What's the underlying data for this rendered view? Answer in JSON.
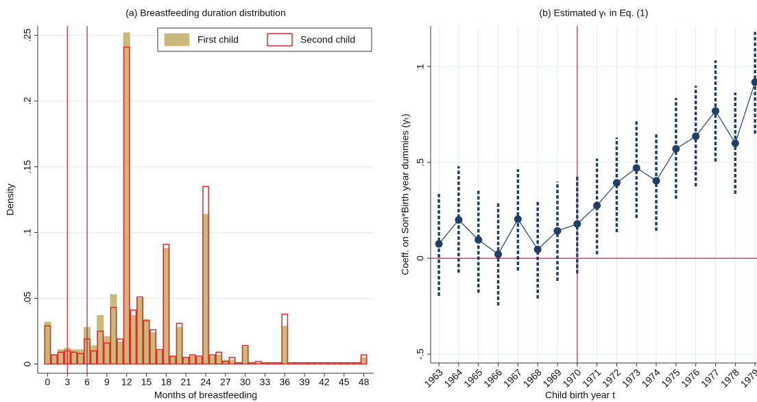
{
  "chart_data": [
    {
      "type": "bar",
      "title": "(a) Breastfeeding duration distribution",
      "xlabel": "Months of breastfeeding",
      "ylabel": "Density",
      "x": [
        0,
        1,
        2,
        3,
        4,
        5,
        6,
        7,
        8,
        9,
        10,
        11,
        12,
        13,
        14,
        15,
        16,
        17,
        18,
        19,
        20,
        21,
        22,
        23,
        24,
        25,
        26,
        27,
        28,
        29,
        30,
        31,
        32,
        33,
        34,
        35,
        36,
        37,
        38,
        39,
        40,
        41,
        42,
        43,
        44,
        45,
        46,
        47,
        48
      ],
      "series": [
        {
          "name": "First child",
          "color": "#c9b97a",
          "style": "filled",
          "values": [
            0.032,
            0.007,
            0.011,
            0.012,
            0.011,
            0.011,
            0.028,
            0.014,
            0.037,
            0.021,
            0.053,
            0.017,
            0.252,
            0.037,
            0.05,
            0.034,
            0.024,
            0.01,
            0.088,
            0.006,
            0.028,
            0.005,
            0.006,
            0.005,
            0.114,
            0.006,
            0.007,
            0.003,
            0.003,
            0.001,
            0.013,
            0.001,
            0.001,
            0.001,
            0.001,
            0.001,
            0.029,
            0.0005,
            0.001,
            0.001,
            0.001,
            0.001,
            0.0005,
            0.0005,
            0.0005,
            0.0005,
            0.0005,
            0.0005,
            0.005
          ]
        },
        {
          "name": "Second child",
          "color": "#e8232a",
          "style": "outline",
          "values": [
            0.029,
            0.007,
            0.009,
            0.01,
            0.009,
            0.008,
            0.019,
            0.01,
            0.025,
            0.016,
            0.043,
            0.019,
            0.241,
            0.041,
            0.051,
            0.033,
            0.026,
            0.011,
            0.091,
            0.006,
            0.031,
            0.005,
            0.007,
            0.006,
            0.135,
            0.007,
            0.009,
            0.002,
            0.005,
            0.001,
            0.014,
            0.001,
            0.002,
            0.001,
            0.001,
            0.001,
            0.038,
            0.001,
            0.001,
            0.001,
            0.001,
            0.001,
            0.001,
            0.001,
            0.001,
            0.001,
            0.001,
            0.001,
            0.007
          ]
        }
      ],
      "vlines": [
        {
          "value": 3,
          "color": "#e8232a"
        },
        {
          "value": 6,
          "color": "#9c2f66"
        }
      ],
      "xlim": [
        -1.5,
        49.5
      ],
      "ylim": [
        -0.007,
        0.257
      ],
      "xticks": [
        0,
        3,
        6,
        9,
        12,
        15,
        18,
        21,
        24,
        27,
        30,
        33,
        36,
        39,
        42,
        45,
        48
      ],
      "yticks": [
        {
          "value": 0,
          "label": "0"
        },
        {
          "value": 0.05,
          "label": ".05"
        },
        {
          "value": 0.1,
          "label": ".1"
        },
        {
          "value": 0.15,
          "label": ".15"
        },
        {
          "value": 0.2,
          "label": ".2"
        },
        {
          "value": 0.25,
          "label": ".25"
        }
      ],
      "grid": true,
      "legend": "top-right"
    },
    {
      "type": "errorbar",
      "title": "(b) Estimated γₜ in Eq. (1)",
      "xlabel": "Child birth year t",
      "ylabel": "Coeff. on Son*Birth year dummies (γₜ)",
      "x": [
        1963,
        1964,
        1965,
        1966,
        1967,
        1968,
        1969,
        1970,
        1971,
        1972,
        1973,
        1974,
        1975,
        1976,
        1977,
        1978,
        1979
      ],
      "values": [
        0.075,
        0.2,
        0.096,
        0.021,
        0.204,
        0.046,
        0.143,
        0.179,
        0.275,
        0.393,
        0.471,
        0.404,
        0.571,
        0.636,
        0.768,
        0.6,
        0.918
      ],
      "lower": [
        -0.196,
        -0.075,
        -0.18,
        -0.246,
        -0.064,
        -0.21,
        -0.118,
        -0.079,
        0.021,
        0.136,
        0.21,
        0.143,
        0.31,
        0.375,
        0.504,
        0.336,
        0.65
      ],
      "upper": [
        0.335,
        0.48,
        0.354,
        0.286,
        0.464,
        0.3,
        0.4,
        0.425,
        0.52,
        0.63,
        0.714,
        0.657,
        0.836,
        0.9,
        1.032,
        0.864,
        1.18
      ],
      "color": "#1f3f66",
      "hline": {
        "value": 0,
        "color": "#c0214f"
      },
      "vline": {
        "value": 1970,
        "color": "#e8232a"
      },
      "xlim": [
        1962.58,
        1979.1
      ],
      "ylim": [
        -0.546,
        1.211
      ],
      "xticks": [
        1963,
        1964,
        1965,
        1966,
        1967,
        1968,
        1969,
        1970,
        1971,
        1972,
        1973,
        1974,
        1975,
        1976,
        1977,
        1978,
        1979
      ],
      "yticks": [
        {
          "value": -0.5,
          "label": "-.5"
        },
        {
          "value": 0,
          "label": "0"
        },
        {
          "value": 0.5,
          "label": ".5"
        },
        1
      ],
      "grid": true
    }
  ]
}
